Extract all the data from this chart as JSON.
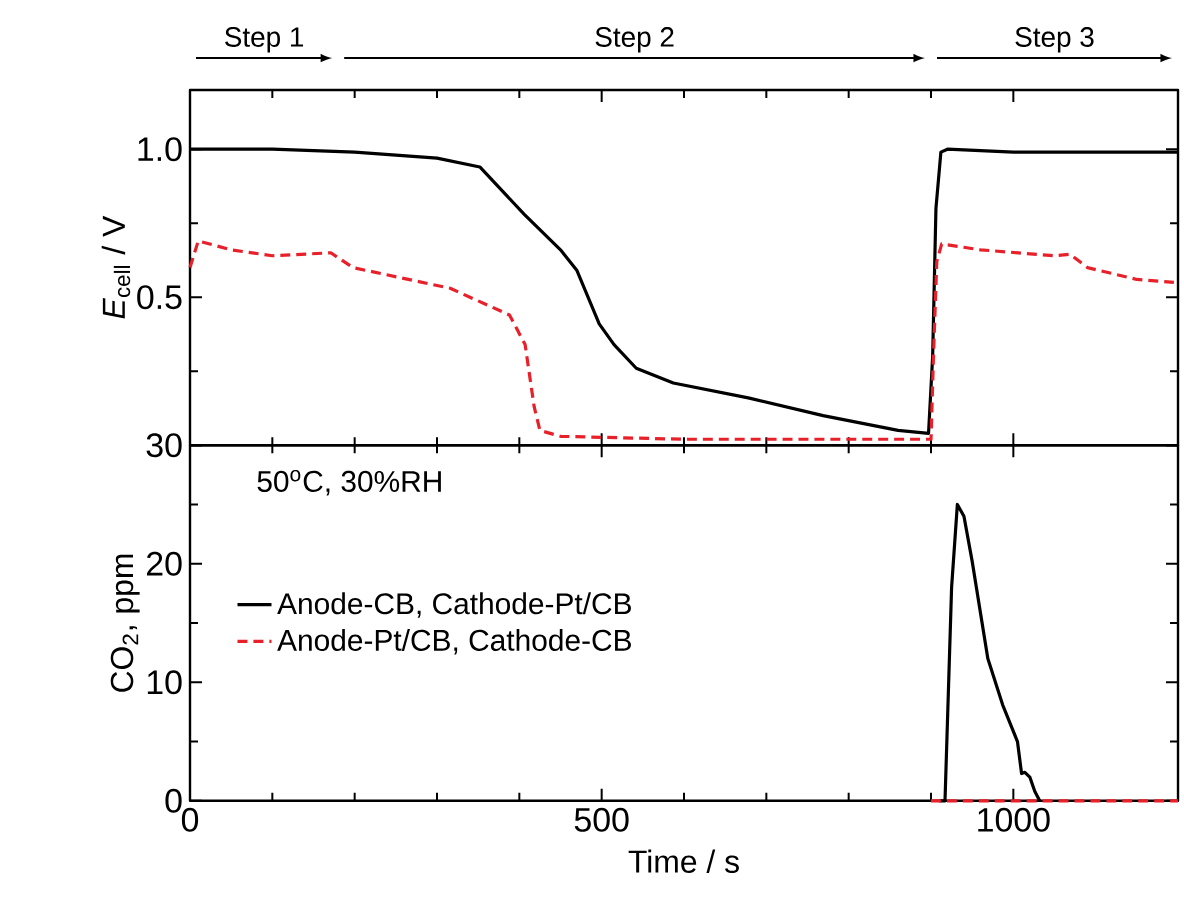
{
  "chart_data": [
    {
      "type": "line",
      "ylabel": "*E*$_{cell}$ / V",
      "xlim": [
        0,
        1200
      ],
      "xticks": [
        0,
        500,
        1000
      ],
      "ylim": [
        0,
        1.2
      ],
      "yticks": [
        {
          "value": 0,
          "label": null
        },
        {
          "value": 0.5,
          "label": "0.5"
        },
        {
          "value": 1.0,
          "label": "1.0"
        }
      ],
      "tick_labels": "y",
      "annotations": [
        "Step 1",
        "Step 2",
        "Step 3"
      ],
      "series": [
        {
          "color": "#000000",
          "line_style": "solid",
          "x": [
            0,
            100,
            200,
            300,
            352,
            406,
            450,
            470,
            497,
            515,
            542,
            587,
            678,
            769,
            860,
            897,
            902,
            906,
            912,
            920,
            1000,
            1100,
            1200
          ],
          "values": [
            1.0,
            1.0,
            0.99,
            0.97,
            0.94,
            0.78,
            0.66,
            0.59,
            0.41,
            0.34,
            0.26,
            0.21,
            0.16,
            0.1,
            0.05,
            0.04,
            0.3,
            0.8,
            0.99,
            1.0,
            0.99,
            0.99,
            0.99
          ]
        },
        {
          "color": "#e8202a",
          "line_style": "dashed",
          "x": [
            0,
            10,
            50,
            100,
            171,
            198,
            316,
            388,
            407,
            418,
            425,
            450,
            600,
            750,
            900,
            903,
            907,
            913,
            960,
            1050,
            1069,
            1090,
            1150,
            1195
          ],
          "values": [
            0.6,
            0.69,
            0.66,
            0.64,
            0.65,
            0.6,
            0.53,
            0.44,
            0.34,
            0.13,
            0.05,
            0.03,
            0.02,
            0.02,
            0.02,
            0.3,
            0.62,
            0.68,
            0.66,
            0.64,
            0.645,
            0.6,
            0.56,
            0.55
          ]
        }
      ]
    },
    {
      "type": "line",
      "xlabel": "Time / s",
      "ylabel": "CO$_{2}$, ppm",
      "xlim": [
        0,
        1200
      ],
      "xticks": [
        0,
        500,
        1000
      ],
      "ylim": [
        0,
        30
      ],
      "yticks": [
        0,
        10,
        20,
        30
      ],
      "legend": "left",
      "annotations": [
        "50$^{o}$C, 30%RH"
      ],
      "series": [
        {
          "name": "Anode-CB, Cathode-Pt/CB",
          "color": "#000000",
          "line_style": "solid",
          "x": [
            910,
            917,
            925,
            932,
            940,
            950,
            969,
            987,
            1005,
            1010,
            1014,
            1020,
            1026,
            1032
          ],
          "values": [
            0,
            0,
            18,
            25,
            24,
            20.2,
            12,
            8.1,
            5,
            2.3,
            2.4,
            2,
            0.8,
            0
          ]
        },
        {
          "name": "Anode-Pt/CB, Cathode-CB",
          "color": "#e8202a",
          "line_style": "dashed",
          "x": [
            900,
            1000,
            1100,
            1200
          ],
          "values": [
            0,
            0,
            0,
            0
          ]
        }
      ]
    }
  ]
}
